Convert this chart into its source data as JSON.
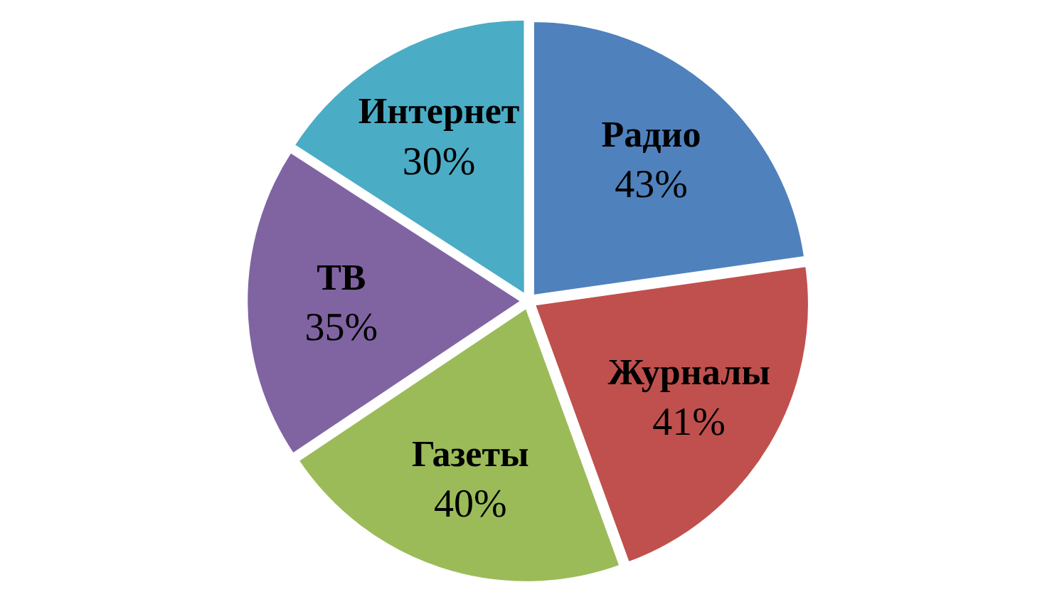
{
  "chart_data": {
    "type": "pie",
    "categories": [
      "Радио",
      "Журналы",
      "Газеты",
      "ТВ",
      "Интернет"
    ],
    "values": [
      43,
      41,
      40,
      35,
      30
    ],
    "colors": [
      "#4f81bd",
      "#c0504d",
      "#9bbb59",
      "#8064a2",
      "#4bacc6"
    ],
    "value_labels": [
      "43%",
      "41%",
      "40%",
      "35%",
      "30%"
    ]
  }
}
